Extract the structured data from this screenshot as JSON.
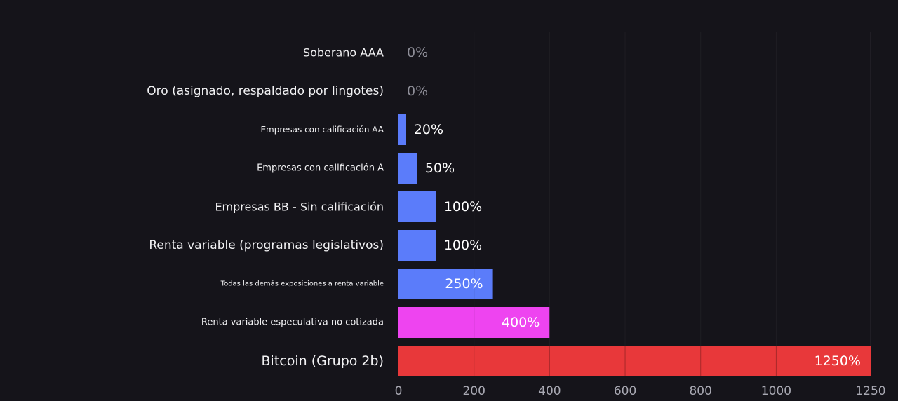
{
  "chart_data": {
    "type": "bar",
    "orientation": "horizontal",
    "title": "",
    "xlabel": "",
    "ylabel": "",
    "categories": [
      "Soberano AAA",
      "Oro (asignado, respaldado por lingotes)",
      "Empresas con calificación AA",
      "Empresas con calificación A",
      "Empresas BB - Sin calificación",
      "Renta variable (programas legislativos)",
      "Todas las demás exposiciones a renta variable",
      "Renta variable especulativa no cotizada",
      "Bitcoin (Grupo 2b)"
    ],
    "values": [
      0,
      0,
      20,
      50,
      100,
      100,
      250,
      400,
      1250
    ],
    "value_labels": [
      "0%",
      "0%",
      "20%",
      "50%",
      "100%",
      "100%",
      "250%",
      "400%",
      "1250%"
    ],
    "bar_colors": [
      "#5b7cfa",
      "#5b7cfa",
      "#5b7cfa",
      "#5b7cfa",
      "#5b7cfa",
      "#5b7cfa",
      "#5b7cfa",
      "#ee44f0",
      "#e8383a"
    ],
    "xlim": [
      0,
      1250
    ],
    "xticks": [
      0,
      200,
      400,
      600,
      800,
      1000,
      1250
    ],
    "xtick_labels": [
      "0",
      "200",
      "400",
      "600",
      "800",
      "1000",
      "1250"
    ],
    "grid": true,
    "legend": "none"
  }
}
